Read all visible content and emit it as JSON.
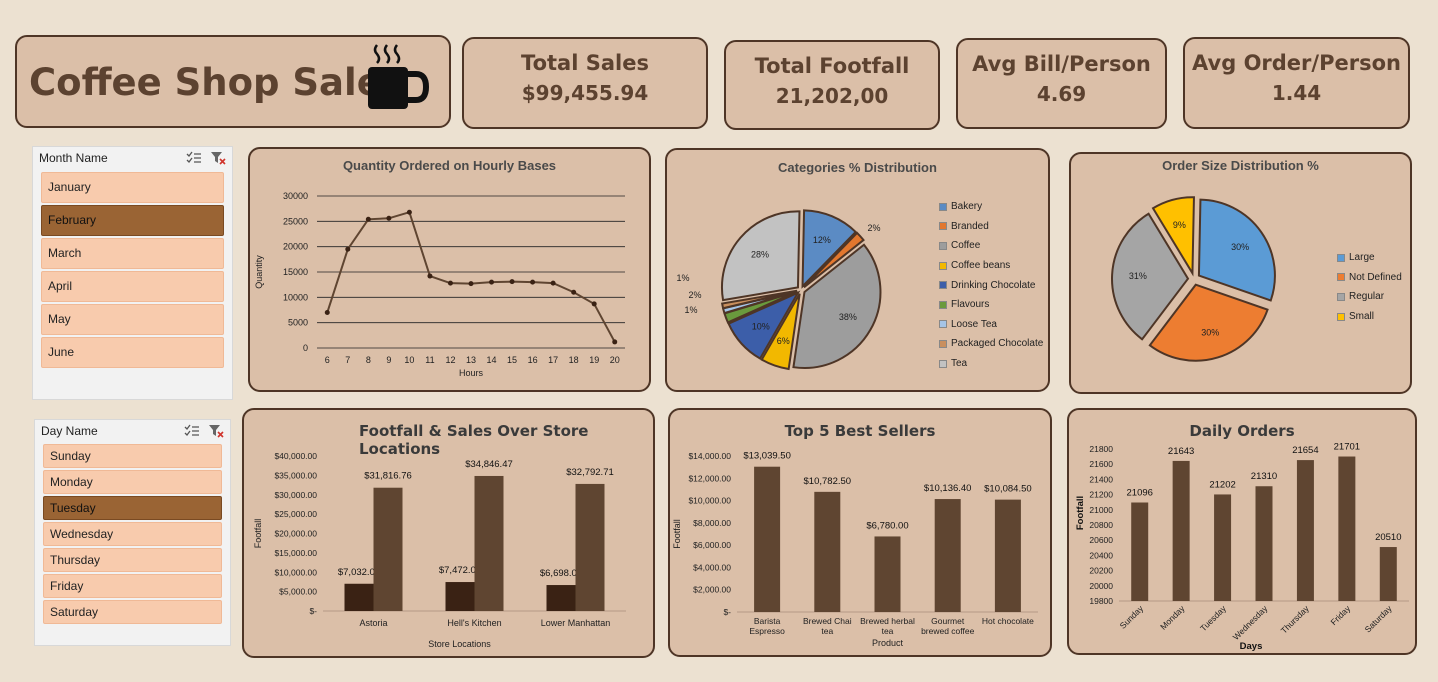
{
  "dashboard": {
    "title": "Coffee Shop Sales"
  },
  "kpis": {
    "total_sales": {
      "label": "Total Sales",
      "value": "$99,455.94"
    },
    "total_footfall": {
      "label": "Total Footfall",
      "value": "21,202,00"
    },
    "avg_bill": {
      "label": "Avg Bill/Person",
      "value": "4.69"
    },
    "avg_order": {
      "label": "Avg Order/Person",
      "value": "1.44"
    }
  },
  "month_slicer": {
    "header": "Month Name",
    "items": [
      {
        "label": "January",
        "selected": false
      },
      {
        "label": "February",
        "selected": true
      },
      {
        "label": "March",
        "selected": false
      },
      {
        "label": "April",
        "selected": false
      },
      {
        "label": "May",
        "selected": false
      },
      {
        "label": "June",
        "selected": false
      }
    ]
  },
  "day_slicer": {
    "header": "Day Name",
    "items": [
      {
        "label": "Sunday",
        "selected": false
      },
      {
        "label": "Monday",
        "selected": false
      },
      {
        "label": "Tuesday",
        "selected": true
      },
      {
        "label": "Wednesday",
        "selected": false
      },
      {
        "label": "Thursday",
        "selected": false
      },
      {
        "label": "Friday",
        "selected": false
      },
      {
        "label": "Saturday",
        "selected": false
      }
    ]
  },
  "icons": {
    "coffee": "coffee-cup-icon",
    "multi_select": "multi-select-icon",
    "clear_filter": "clear-filter-icon"
  },
  "colors": {
    "background": "#ece1d1",
    "panel": "#dbbfa8",
    "border": "#4e3526",
    "bar_dark": "#3a2214",
    "bar_brown": "#5f4531",
    "slicer_item": "#f8cbad",
    "slicer_selected": "#9a6434"
  },
  "chart_data": [
    {
      "id": "hourly",
      "type": "line",
      "title": "Quantity Ordered on Hourly Bases",
      "xlabel": "Hours",
      "ylabel": "Quantity",
      "x": [
        6,
        7,
        8,
        9,
        10,
        11,
        12,
        13,
        14,
        15,
        16,
        17,
        18,
        19,
        20
      ],
      "values": [
        7000,
        19500,
        25400,
        25600,
        26800,
        14200,
        12800,
        12700,
        13000,
        13100,
        13000,
        12800,
        11000,
        8700,
        1200
      ],
      "ylim": [
        0,
        30000
      ],
      "yticks": [
        0,
        5000,
        10000,
        15000,
        20000,
        25000,
        30000
      ],
      "grid": true,
      "color": "#5f4531"
    },
    {
      "id": "categories",
      "type": "pie",
      "title": "Categories % Distribution",
      "labels": [
        "Bakery",
        "Branded",
        "Coffee",
        "Coffee beans",
        "Drinking Chocolate",
        "Flavours",
        "Loose Tea",
        "Packaged Chocolate",
        "Tea"
      ],
      "values": [
        12,
        2,
        38,
        6,
        10,
        2,
        1,
        1,
        28
      ],
      "data_labels": [
        "12%",
        "2%",
        "38%",
        "6%",
        "10%",
        "2%",
        "1%",
        "1%",
        "28%"
      ],
      "colors": [
        "#5b8bc4",
        "#e2772e",
        "#9d9d9d",
        "#f2b800",
        "#3c5ea9",
        "#6a9a3d",
        "#a5c4e6",
        "#c98f5e",
        "#c2c2c2"
      ],
      "legend": "right"
    },
    {
      "id": "order_size",
      "type": "pie",
      "title": "Order Size Distribution %",
      "labels": [
        "Large",
        "Not Defined",
        "Regular",
        "Small"
      ],
      "values": [
        30,
        30,
        31,
        9
      ],
      "data_labels": [
        "30%",
        "30%",
        "31%",
        "9%"
      ],
      "colors": [
        "#5b9bd5",
        "#ed7d31",
        "#a5a5a5",
        "#ffc000"
      ],
      "legend": "right"
    },
    {
      "id": "locations",
      "type": "bar",
      "title": "Footfall & Sales Over Store Locations",
      "xlabel": "Store Locations",
      "ylabel": "Footfall",
      "categories": [
        "Astoria",
        "Hell's Kitchen",
        "Lower Manhattan"
      ],
      "series": [
        {
          "values": [
            7032,
            7472,
            6698
          ],
          "labels": [
            "$7,032.00",
            "$7,472.00",
            "$6,698.00"
          ],
          "color": "#3a2214"
        },
        {
          "values": [
            31816.76,
            34846.47,
            32792.71
          ],
          "labels": [
            "$31,816.76",
            "$34,846.47",
            "$32,792.71"
          ],
          "color": "#5f4531"
        }
      ],
      "ylim": [
        0,
        40000
      ],
      "yticks": [
        0,
        5000,
        10000,
        15000,
        20000,
        25000,
        30000,
        35000,
        40000
      ],
      "ytick_labels": [
        "$-",
        "$5,000.00",
        "$10,000.00",
        "$15,000.00",
        "$20,000.00",
        "$25,000.00",
        "$30,000.00",
        "$35,000.00",
        "$40,000.00"
      ]
    },
    {
      "id": "top5",
      "type": "bar",
      "title": "Top 5 Best Sellers",
      "xlabel": "Product",
      "ylabel": "Footfall",
      "categories": [
        [
          "Barista",
          "Espresso"
        ],
        [
          "Brewed Chai",
          "tea"
        ],
        [
          "Brewed herbal",
          "tea"
        ],
        [
          "Gourmet",
          "brewed coffee"
        ],
        [
          "Hot chocolate"
        ]
      ],
      "values": [
        13039.5,
        10782.5,
        6780,
        10136.4,
        10084.5
      ],
      "data_labels": [
        "$13,039.50",
        "$10,782.50",
        "$6,780.00",
        "$10,136.40",
        "$10,084.50"
      ],
      "ylim": [
        0,
        14000
      ],
      "yticks": [
        0,
        2000,
        4000,
        6000,
        8000,
        10000,
        12000,
        14000
      ],
      "ytick_labels": [
        "$-",
        "$2,000.00",
        "$4,000.00",
        "$6,000.00",
        "$8,000.00",
        "$10,000.00",
        "$12,000.00",
        "$14,000.00"
      ],
      "color": "#5f4531"
    },
    {
      "id": "daily",
      "type": "bar",
      "title": "Daily Orders",
      "xlabel": "Days",
      "ylabel": "Footfall",
      "categories": [
        "Sunday",
        "Monday",
        "Tuesday",
        "Wednesday",
        "Thursday",
        "Friday",
        "Saturday"
      ],
      "values": [
        21096,
        21643,
        21202,
        21310,
        21654,
        21701,
        20510
      ],
      "data_labels": [
        "21096",
        "21643",
        "21202",
        "21310",
        "21654",
        "21701",
        "20510"
      ],
      "ylim": [
        19800,
        21800
      ],
      "yticks": [
        19800,
        20000,
        20200,
        20400,
        20600,
        20800,
        21000,
        21200,
        21400,
        21600,
        21800
      ],
      "color": "#5f4531"
    }
  ]
}
